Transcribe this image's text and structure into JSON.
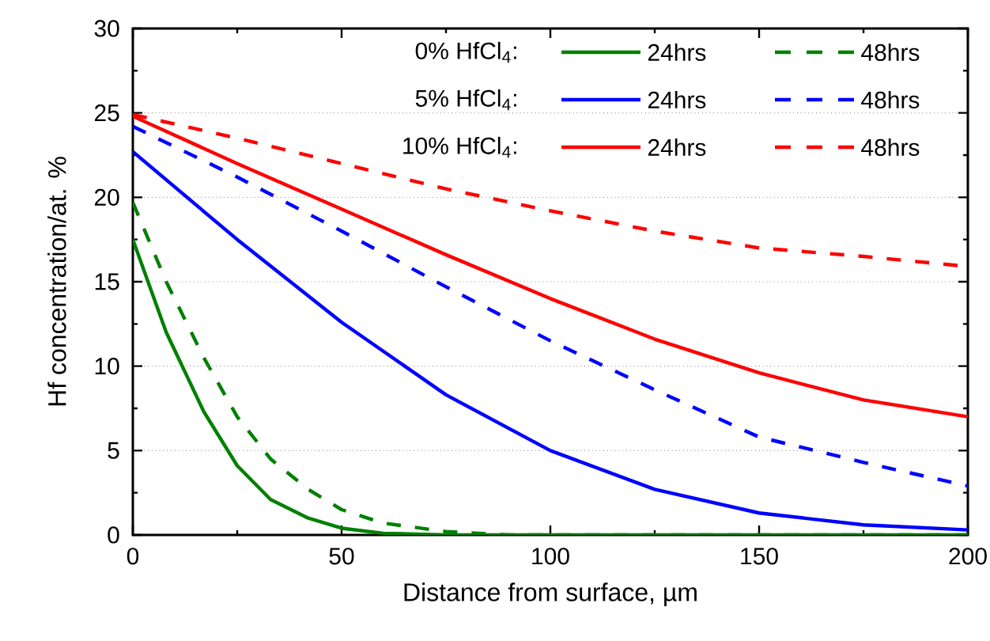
{
  "chart_data": {
    "type": "line",
    "xlabel": "Distance from surface, µm",
    "ylabel": "Hf concentration/at. %",
    "xlim": [
      0,
      200
    ],
    "ylim": [
      0,
      30
    ],
    "xticks": [
      0,
      50,
      100,
      150,
      200
    ],
    "yticks": [
      0,
      5,
      10,
      15,
      20,
      25,
      30
    ],
    "grid": "y",
    "legend": "top right",
    "marker": "none",
    "annotations": [
      "0% HfCl$_{4}$:",
      "5% HfCl$_{4}$:",
      "10% HfCl$_{4}$:"
    ],
    "series": [
      {
        "name": "24hrs",
        "color": "#008000",
        "line_style": "solid",
        "x": [
          0,
          8,
          17,
          25,
          33,
          42,
          50,
          60,
          75,
          100,
          150,
          200
        ],
        "values": [
          17.5,
          12,
          7.3,
          4.1,
          2.1,
          1.0,
          0.4,
          0.1,
          0,
          0,
          0,
          0
        ]
      },
      {
        "name": "48hrs",
        "color": "#008000",
        "line_style": "dashed",
        "x": [
          0,
          8,
          17,
          25,
          33,
          42,
          50,
          60,
          75,
          90,
          100,
          150,
          200
        ],
        "values": [
          19.7,
          15,
          10.5,
          7,
          4.5,
          2.7,
          1.5,
          0.7,
          0.2,
          0,
          0,
          0,
          0
        ]
      },
      {
        "name": "24hrs",
        "color": "#0000ff",
        "line_style": "solid",
        "x": [
          0,
          25,
          50,
          75,
          100,
          125,
          150,
          175,
          200
        ],
        "values": [
          22.7,
          17.5,
          12.6,
          8.3,
          5,
          2.7,
          1.3,
          0.6,
          0.3
        ]
      },
      {
        "name": "48hrs",
        "color": "#0000ff",
        "line_style": "dashed",
        "x": [
          0,
          25,
          50,
          75,
          100,
          125,
          150,
          175,
          200
        ],
        "values": [
          24.2,
          21.2,
          18,
          14.7,
          11.5,
          8.6,
          5.8,
          4.3,
          2.9
        ]
      },
      {
        "name": "24hrs",
        "color": "#ff0000",
        "line_style": "solid",
        "x": [
          0,
          25,
          50,
          75,
          100,
          125,
          150,
          175,
          200
        ],
        "values": [
          24.8,
          22,
          19.3,
          16.6,
          14,
          11.6,
          9.6,
          8,
          7
        ]
      },
      {
        "name": "48hrs",
        "color": "#ff0000",
        "line_style": "dashed",
        "x": [
          0,
          25,
          50,
          75,
          100,
          125,
          150,
          175,
          200
        ],
        "values": [
          24.9,
          23.5,
          22,
          20.5,
          19.2,
          18,
          17,
          16.5,
          15.9
        ]
      }
    ]
  }
}
